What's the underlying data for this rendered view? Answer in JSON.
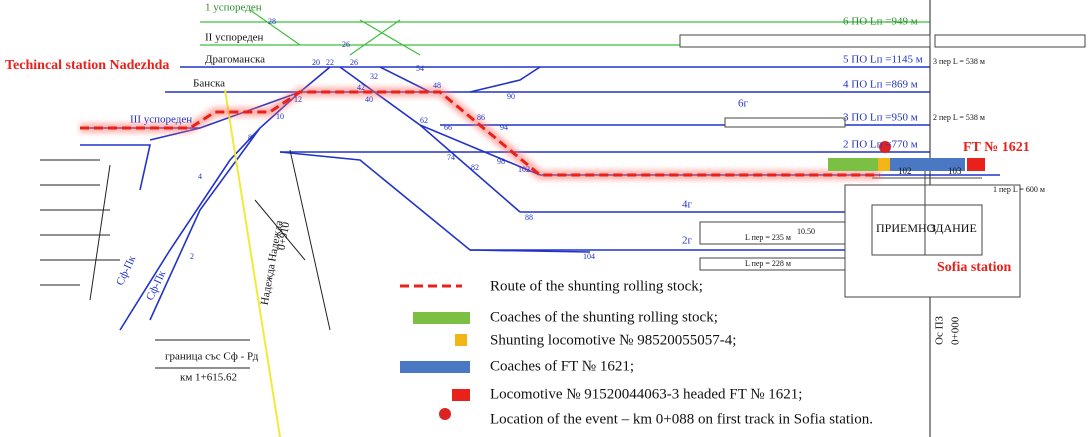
{
  "labels": {
    "technical_station": "Techincal station Nadezhda",
    "sofia_station": "Sofia station",
    "ft": "FT № 1621"
  },
  "tracks": {
    "left": [
      "1 успореден",
      "II успореден",
      "Драгоманска",
      "Банска",
      "III успореден"
    ],
    "right": [
      "6 ПО Lп =949 м",
      "5 ПО Lп =1145 м",
      "4 ПО Lп =869 м",
      "3 ПО Lп =950 м",
      "2 ПО Lп =770 м"
    ],
    "lengths": [
      "3 пер L = 538 м",
      "2 пер L = 538 м",
      "1 пер L = 600 м"
    ]
  },
  "sidings": [
    "6г",
    "4г",
    "2г"
  ],
  "siding_lengths": [
    "L пер = 235 м",
    "10.50",
    "L пер = 228 м"
  ],
  "building": {
    "rooms": [
      "102",
      "103"
    ],
    "name": [
      "ПРИЕМНО",
      "ЗДАНИЕ"
    ]
  },
  "border": {
    "name": "граница със Сф - Рд",
    "km": "км 1+615.62"
  },
  "vertical_labels": [
    "Надежда Надежда",
    "0+910",
    "Ос ПЗ",
    "0+000",
    "Сф-Пк",
    "Сф-Пк"
  ],
  "switches": [
    "28",
    "20",
    "22",
    "26",
    "26",
    "32",
    "42",
    "12",
    "10",
    "8",
    "4",
    "2",
    "40",
    "48",
    "54",
    "62",
    "66",
    "74",
    "82",
    "86",
    "94",
    "98",
    "90",
    "102",
    "88",
    "104"
  ],
  "legend": [
    "Route of the shunting rolling stock;",
    "Coaches of the shunting rolling stock;",
    "Shunting locomotive № 98520055057-4;",
    "Coaches of FT № 1621;",
    "Locomotive № 91520044063-3 headed FT № 1621;",
    "Location of the event – km 0+088 on first track in Sofia station."
  ]
}
